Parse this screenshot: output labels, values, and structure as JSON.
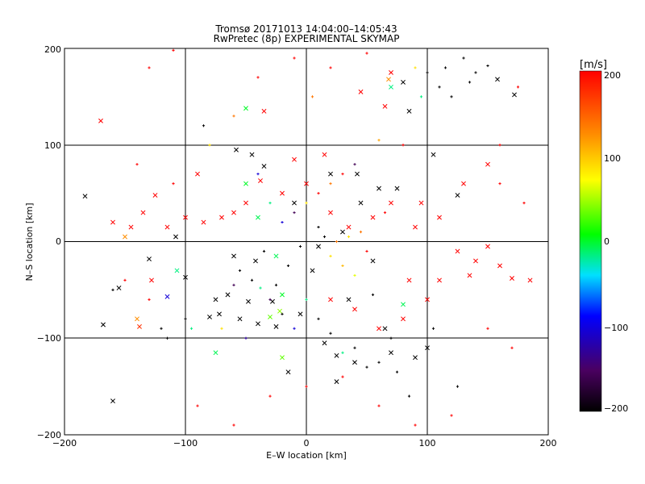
{
  "chart_data": {
    "type": "scatter",
    "title": "Tromsø 20171013 14:04:00–14:05:43",
    "subtitle": "RwPretec (8p) EXPERIMENTAL SKYMAP",
    "xlabel": "E–W location [km]",
    "ylabel": "N–S location [km]",
    "xlim": [
      -200,
      200
    ],
    "ylim": [
      -200,
      200
    ],
    "xticks": [
      "−200",
      "−100",
      "0",
      "100",
      "200"
    ],
    "yticks": [
      "−200",
      "−100",
      "0",
      "100",
      "200"
    ],
    "grid": true,
    "markers": [
      "x",
      "+"
    ],
    "colorbar": {
      "label": "[m/s]",
      "range": [
        -200,
        200
      ],
      "ticks": [
        "200",
        "100",
        "0",
        "−100",
        "−200"
      ],
      "colormap": [
        "#000000",
        "#4a0060",
        "#0000ff",
        "#00e0ff",
        "#00ff00",
        "#ffff00",
        "#ff8800",
        "#ff0000"
      ]
    },
    "series": [
      {
        "marker": "x",
        "points": [
          [
            -183,
            47,
            -200
          ],
          [
            -160,
            -165,
            -200
          ],
          [
            -140,
            -80,
            140
          ],
          [
            -138,
            -88,
            180
          ],
          [
            -130,
            -18,
            -200
          ],
          [
            -168,
            -86,
            -200
          ],
          [
            -155,
            -48,
            -200
          ],
          [
            -128,
            -40,
            200
          ],
          [
            -115,
            -57,
            -100
          ],
          [
            -108,
            5,
            -200
          ],
          [
            -107,
            -30,
            0
          ],
          [
            -100,
            -37,
            -200
          ],
          [
            -80,
            -78,
            -200
          ],
          [
            -75,
            -60,
            -200
          ],
          [
            -72,
            -75,
            -200
          ],
          [
            -65,
            -55,
            -200
          ],
          [
            -60,
            -15,
            -200
          ],
          [
            -58,
            95,
            -200
          ],
          [
            -55,
            -80,
            -200
          ],
          [
            -48,
            -62,
            -200
          ],
          [
            -45,
            90,
            -200
          ],
          [
            -42,
            -20,
            -200
          ],
          [
            -40,
            -85,
            -200
          ],
          [
            -38,
            63,
            200
          ],
          [
            -35,
            78,
            -200
          ],
          [
            -30,
            -78,
            50
          ],
          [
            -28,
            -62,
            -200
          ],
          [
            -25,
            -88,
            -200
          ],
          [
            -22,
            -72,
            60
          ],
          [
            -20,
            -120,
            50
          ],
          [
            -15,
            -135,
            -200
          ],
          [
            -10,
            40,
            -200
          ],
          [
            -5,
            -75,
            -200
          ],
          [
            5,
            -30,
            -200
          ],
          [
            10,
            -5,
            -200
          ],
          [
            15,
            -105,
            -200
          ],
          [
            20,
            70,
            -200
          ],
          [
            25,
            -118,
            -200
          ],
          [
            25,
            -145,
            -200
          ],
          [
            30,
            10,
            -200
          ],
          [
            35,
            -60,
            -200
          ],
          [
            40,
            -125,
            -200
          ],
          [
            42,
            70,
            -200
          ],
          [
            45,
            40,
            -200
          ],
          [
            55,
            -20,
            -200
          ],
          [
            60,
            55,
            -200
          ],
          [
            65,
            -90,
            -200
          ],
          [
            70,
            -115,
            -200
          ],
          [
            75,
            55,
            -200
          ],
          [
            80,
            165,
            -200
          ],
          [
            85,
            135,
            -200
          ],
          [
            90,
            -120,
            -200
          ],
          [
            100,
            -110,
            -200
          ],
          [
            105,
            90,
            -200
          ],
          [
            125,
            48,
            -200
          ],
          [
            158,
            168,
            -200
          ],
          [
            172,
            152,
            -200
          ],
          [
            -125,
            48,
            200
          ],
          [
            -100,
            25,
            200
          ],
          [
            -90,
            70,
            200
          ],
          [
            -70,
            25,
            200
          ],
          [
            -50,
            40,
            200
          ],
          [
            -20,
            50,
            200
          ],
          [
            0,
            60,
            200
          ],
          [
            20,
            30,
            200
          ],
          [
            35,
            15,
            200
          ],
          [
            55,
            25,
            200
          ],
          [
            70,
            40,
            200
          ],
          [
            90,
            15,
            200
          ],
          [
            110,
            25,
            200
          ],
          [
            125,
            -10,
            200
          ],
          [
            140,
            -20,
            200
          ],
          [
            160,
            -25,
            200
          ],
          [
            170,
            -38,
            200
          ],
          [
            150,
            -5,
            200
          ],
          [
            135,
            -35,
            200
          ],
          [
            110,
            -40,
            200
          ],
          [
            100,
            -60,
            200
          ],
          [
            80,
            -80,
            200
          ],
          [
            60,
            -90,
            200
          ],
          [
            40,
            -70,
            200
          ],
          [
            20,
            -60,
            200
          ],
          [
            -60,
            30,
            200
          ],
          [
            -85,
            20,
            200
          ],
          [
            -145,
            15,
            200
          ],
          [
            -160,
            20,
            200
          ],
          [
            -135,
            30,
            200
          ],
          [
            -115,
            15,
            200
          ],
          [
            65,
            140,
            200
          ],
          [
            45,
            155,
            200
          ],
          [
            -35,
            135,
            200
          ],
          [
            -170,
            125,
            200
          ],
          [
            70,
            175,
            200
          ],
          [
            130,
            60,
            200
          ],
          [
            150,
            80,
            200
          ],
          [
            185,
            -40,
            200
          ],
          [
            -10,
            85,
            200
          ],
          [
            15,
            90,
            200
          ],
          [
            85,
            -40,
            200
          ],
          [
            95,
            40,
            200
          ],
          [
            70,
            160,
            0
          ],
          [
            68,
            168,
            140
          ],
          [
            -50,
            138,
            20
          ],
          [
            -40,
            25,
            10
          ],
          [
            -75,
            -115,
            10
          ],
          [
            -150,
            5,
            140
          ],
          [
            -50,
            60,
            20
          ],
          [
            -20,
            -55,
            20
          ],
          [
            -25,
            -15,
            10
          ],
          [
            80,
            -65,
            10
          ]
        ]
      },
      {
        "marker": "+",
        "points": [
          [
            -160,
            -50,
            -200
          ],
          [
            -130,
            180,
            200
          ],
          [
            -110,
            198,
            200
          ],
          [
            -100,
            -80,
            -200
          ],
          [
            -95,
            -90,
            0
          ],
          [
            -85,
            120,
            -200
          ],
          [
            -80,
            100,
            100
          ],
          [
            -70,
            -90,
            100
          ],
          [
            -60,
            130,
            150
          ],
          [
            -50,
            -100,
            -120
          ],
          [
            -45,
            -40,
            -200
          ],
          [
            -38,
            -48,
            0
          ],
          [
            -35,
            -10,
            -200
          ],
          [
            -30,
            -60,
            -150
          ],
          [
            -25,
            -45,
            -200
          ],
          [
            -20,
            -75,
            -200
          ],
          [
            -15,
            -25,
            -200
          ],
          [
            -10,
            -90,
            -100
          ],
          [
            -5,
            -5,
            -200
          ],
          [
            0,
            -60,
            0
          ],
          [
            5,
            150,
            150
          ],
          [
            10,
            15,
            -200
          ],
          [
            15,
            5,
            -200
          ],
          [
            20,
            -15,
            100
          ],
          [
            25,
            0,
            150
          ],
          [
            30,
            -25,
            120
          ],
          [
            35,
            5,
            100
          ],
          [
            40,
            -35,
            80
          ],
          [
            45,
            10,
            150
          ],
          [
            50,
            -10,
            200
          ],
          [
            55,
            -55,
            -200
          ],
          [
            60,
            105,
            130
          ],
          [
            65,
            30,
            200
          ],
          [
            70,
            -100,
            -200
          ],
          [
            75,
            -135,
            -200
          ],
          [
            80,
            100,
            200
          ],
          [
            85,
            -160,
            -200
          ],
          [
            90,
            180,
            100
          ],
          [
            95,
            150,
            0
          ],
          [
            100,
            175,
            -200
          ],
          [
            105,
            -90,
            -200
          ],
          [
            110,
            160,
            -200
          ],
          [
            115,
            180,
            -200
          ],
          [
            120,
            150,
            -200
          ],
          [
            125,
            -150,
            -200
          ],
          [
            130,
            190,
            -200
          ],
          [
            135,
            165,
            -200
          ],
          [
            140,
            175,
            -200
          ],
          [
            150,
            182,
            -200
          ],
          [
            160,
            60,
            200
          ],
          [
            175,
            160,
            200
          ],
          [
            -40,
            70,
            -100
          ],
          [
            -30,
            40,
            0
          ],
          [
            -20,
            20,
            -100
          ],
          [
            -10,
            30,
            -150
          ],
          [
            0,
            40,
            100
          ],
          [
            10,
            50,
            200
          ],
          [
            20,
            60,
            150
          ],
          [
            30,
            70,
            200
          ],
          [
            40,
            80,
            -150
          ],
          [
            -120,
            -90,
            -200
          ],
          [
            -115,
            -100,
            -200
          ],
          [
            -60,
            -45,
            -150
          ],
          [
            -55,
            -30,
            -200
          ],
          [
            10,
            -80,
            -200
          ],
          [
            20,
            -95,
            -200
          ],
          [
            30,
            -115,
            0
          ],
          [
            40,
            -110,
            -200
          ],
          [
            50,
            -130,
            -200
          ],
          [
            60,
            -125,
            -200
          ],
          [
            -90,
            -170,
            200
          ],
          [
            -60,
            -190,
            200
          ],
          [
            -30,
            -160,
            200
          ],
          [
            0,
            -150,
            200
          ],
          [
            30,
            -140,
            200
          ],
          [
            60,
            -170,
            200
          ],
          [
            90,
            -190,
            200
          ],
          [
            120,
            -180,
            200
          ],
          [
            -150,
            -40,
            200
          ],
          [
            -130,
            -60,
            200
          ],
          [
            -110,
            60,
            200
          ],
          [
            -140,
            80,
            200
          ],
          [
            150,
            -90,
            200
          ],
          [
            170,
            -110,
            200
          ],
          [
            180,
            40,
            200
          ],
          [
            160,
            100,
            200
          ],
          [
            -40,
            170,
            200
          ],
          [
            -10,
            190,
            200
          ],
          [
            20,
            180,
            200
          ],
          [
            50,
            195,
            200
          ]
        ]
      }
    ]
  }
}
